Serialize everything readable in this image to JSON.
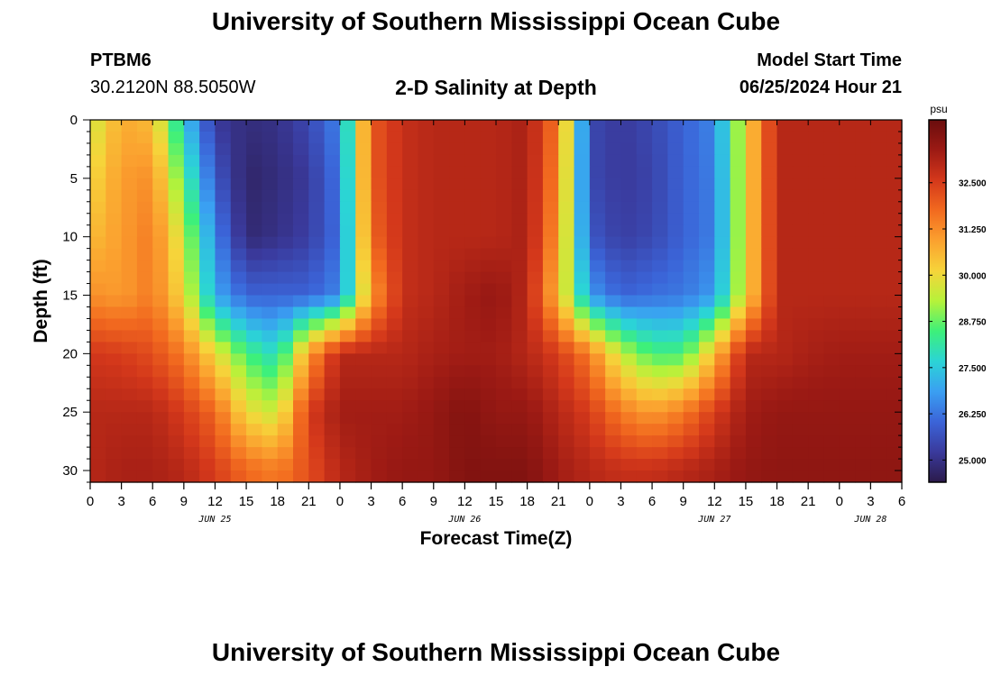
{
  "header": {
    "title": "University of Southern Mississippi Ocean Cube",
    "station_id": "PTBM6",
    "coordinates": "30.2120N  88.5050W",
    "subtitle": "2-D Salinity at Depth",
    "model_start_label": "Model Start Time",
    "model_start_value": "06/25/2024 Hour 21"
  },
  "footer": {
    "title": "University of Southern Mississippi Ocean Cube"
  },
  "colors": {
    "scale": [
      "#2b1a4a",
      "#3a3a9c",
      "#3b64d8",
      "#3a9ff2",
      "#2bd4d6",
      "#3df07a",
      "#b6f23a",
      "#f6d43a",
      "#fba12f",
      "#f26a1f",
      "#d4381b",
      "#9c1a14",
      "#6a0d0d"
    ]
  },
  "chart_data": {
    "type": "heatmap",
    "title": "2-D Salinity at Depth",
    "xlabel": "Forecast Time(Z)",
    "ylabel": "Depth (ft)",
    "x_ticks": [
      "0",
      "3",
      "6",
      "9",
      "12",
      "15",
      "18",
      "21",
      "0",
      "3",
      "6",
      "9",
      "12",
      "15",
      "18",
      "21",
      "0",
      "3",
      "6",
      "9",
      "12",
      "15",
      "18",
      "21",
      "0",
      "3",
      "6"
    ],
    "x_range_hours": [
      0,
      78
    ],
    "date_labels": [
      {
        "text": "JUN 25",
        "hour": 12
      },
      {
        "text": "JUN 26",
        "hour": 36
      },
      {
        "text": "JUN 27",
        "hour": 60
      },
      {
        "text": "JUN 28",
        "hour": 75
      }
    ],
    "y_ticks": [
      0,
      5,
      10,
      15,
      20,
      25,
      30
    ],
    "y_range": [
      0,
      31
    ],
    "colorbar": {
      "unit": "psu",
      "range": [
        24.4,
        34.2
      ],
      "ticks": [
        "25.000",
        "26.250",
        "27.500",
        "28.750",
        "30.000",
        "31.250",
        "32.500"
      ]
    },
    "grid": {
      "hours": [
        0,
        3,
        6,
        9,
        12,
        15,
        18,
        21,
        24,
        27,
        30,
        33,
        36,
        39,
        42,
        45,
        48,
        51,
        54,
        57,
        60,
        63,
        66,
        69,
        72,
        75,
        78
      ],
      "depths": [
        0,
        5,
        10,
        15,
        20,
        25,
        30
      ],
      "values": [
        [
          29.5,
          30.8,
          30.5,
          27.5,
          25.2,
          24.9,
          25.0,
          25.5,
          26.5,
          32.0,
          32.8,
          33.0,
          33.0,
          33.0,
          33.2,
          31.5,
          25.5,
          25.2,
          25.5,
          26.0,
          26.5,
          30.0,
          33.0,
          33.0,
          33.0,
          33.0,
          33.0
        ],
        [
          30.0,
          31.0,
          31.2,
          28.5,
          25.8,
          24.7,
          24.9,
          25.2,
          26.3,
          32.0,
          32.8,
          33.0,
          33.0,
          33.0,
          33.2,
          31.3,
          25.5,
          25.2,
          25.4,
          26.0,
          26.4,
          30.0,
          33.0,
          33.0,
          33.0,
          33.0,
          33.0
        ],
        [
          30.5,
          31.0,
          31.5,
          29.5,
          26.5,
          24.8,
          25.0,
          25.3,
          26.2,
          31.8,
          32.8,
          33.0,
          33.0,
          33.0,
          33.2,
          31.0,
          25.8,
          25.3,
          25.5,
          26.0,
          26.4,
          30.0,
          33.0,
          33.0,
          33.0,
          33.0,
          33.0
        ],
        [
          31.2,
          31.0,
          31.5,
          30.0,
          27.0,
          26.0,
          26.0,
          26.0,
          26.5,
          31.0,
          32.8,
          33.0,
          33.3,
          33.5,
          33.0,
          30.5,
          26.8,
          26.0,
          26.2,
          26.3,
          26.8,
          30.0,
          33.0,
          33.0,
          33.0,
          33.0,
          33.0
        ],
        [
          32.6,
          32.5,
          32.2,
          31.5,
          30.0,
          28.5,
          27.8,
          31.0,
          33.0,
          33.0,
          33.0,
          33.2,
          33.3,
          33.3,
          33.0,
          32.5,
          31.5,
          29.5,
          28.5,
          28.5,
          30.5,
          33.0,
          33.0,
          33.2,
          33.3,
          33.3,
          33.3
        ],
        [
          33.0,
          33.0,
          33.0,
          32.5,
          31.8,
          30.0,
          29.5,
          32.5,
          33.3,
          33.3,
          33.3,
          33.5,
          33.8,
          33.5,
          33.5,
          33.0,
          32.5,
          31.5,
          31.0,
          31.5,
          32.5,
          33.3,
          33.5,
          33.5,
          33.5,
          33.5,
          33.5
        ],
        [
          33.0,
          33.2,
          33.2,
          33.0,
          32.5,
          31.8,
          31.5,
          32.2,
          33.0,
          33.3,
          33.5,
          33.5,
          33.8,
          33.8,
          33.8,
          33.3,
          33.0,
          32.8,
          32.8,
          33.0,
          33.2,
          33.5,
          33.6,
          33.6,
          33.6,
          33.6,
          33.6
        ]
      ]
    }
  }
}
